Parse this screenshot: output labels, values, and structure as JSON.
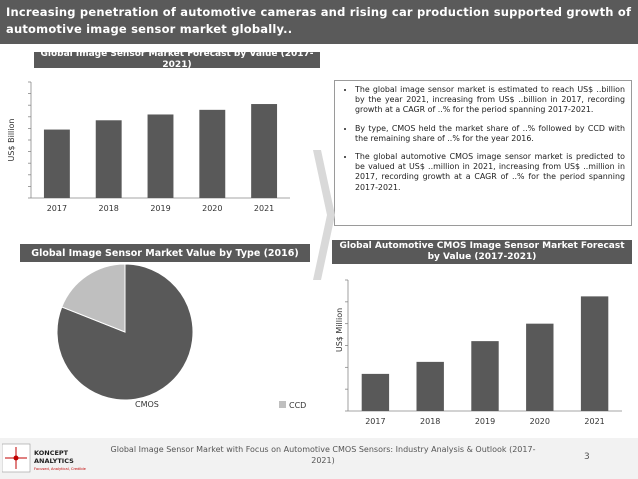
{
  "banner": {
    "title": "Increasing penetration of automotive cameras and rising car production supported growth of automotive image sensor market globally.."
  },
  "sections": {
    "forecast_value_title": "Global Image Sensor Market Forecast by Value (2017-2021)",
    "by_type_title": "Global Image Sensor Market Value by Type (2016)",
    "cmos_forecast_title": "Global Automotive CMOS Image Sensor Market Forecast by Value (2017-2021)"
  },
  "bullets": [
    "The global image sensor market is estimated to reach US$ ..billion by the year 2021, increasing from US$ ..billion in 2017, recording growth at a CAGR of ..% for the period spanning 2017-2021.",
    "By type, CMOS held the market share of ..% followed by CCD with the remaining share of ..% for the year 2016.",
    "The global automotive CMOS image sensor market is predicted to be valued at US$ ..million in 2021, increasing from US$ ..million in 2017, recording growth at a CAGR of ..% for the period spanning 2017-2021."
  ],
  "footer": {
    "text": "Global Image Sensor Market with Focus on Automotive CMOS Sensors: Industry Analysis & Outlook (2017-2021)",
    "page": "3",
    "logo_line1": "KONCEPT",
    "logo_line2": "ANALYTICS",
    "logo_tagline": "Focused, Analytical, Credible"
  },
  "colors": {
    "bar": "#595959",
    "pie_cmos": "#595959",
    "pie_ccd": "#bfbfbf",
    "banner": "#5a5a5a"
  },
  "chart_data": [
    {
      "type": "bar",
      "categories": [
        "2017",
        "2018",
        "2019",
        "2020",
        "2021"
      ],
      "values": [
        59,
        67,
        72,
        76,
        81
      ],
      "ylabel": "US$ Billion",
      "ylim": [
        0,
        100
      ],
      "grid": false
    },
    {
      "type": "pie",
      "labels": [
        "CMOS",
        "CCD"
      ],
      "values": [
        81,
        19
      ],
      "legend": "bottom"
    },
    {
      "type": "bar",
      "categories": [
        "2017",
        "2018",
        "2019",
        "2020",
        "2021"
      ],
      "values": [
        34,
        45,
        64,
        80,
        105
      ],
      "ylabel": "US$ Million",
      "ylim": [
        0,
        120
      ],
      "grid": false
    }
  ]
}
